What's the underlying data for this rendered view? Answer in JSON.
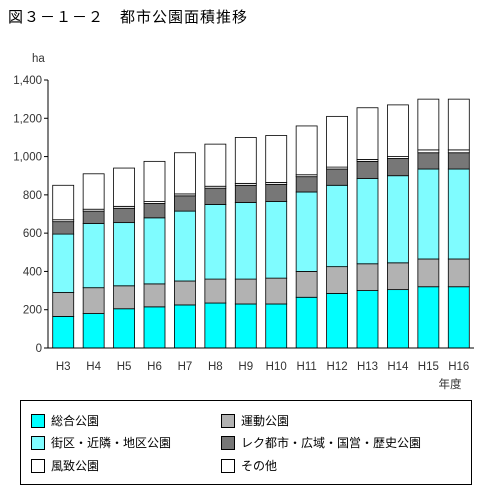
{
  "title": "図３－１－２　都市公園面積推移",
  "chart_data": {
    "type": "bar",
    "stacked": true,
    "ylabel": "ha",
    "xlabel": "年度",
    "ylim": [
      0,
      1400
    ],
    "yticks": [
      0,
      200,
      400,
      600,
      800,
      1000,
      1200,
      1400
    ],
    "ytick_labels": [
      "0",
      "200",
      "400",
      "600",
      "800",
      "1,000",
      "1,200",
      "1,400"
    ],
    "categories": [
      "H3",
      "H4",
      "H5",
      "H6",
      "H7",
      "H8",
      "H9",
      "H10",
      "H11",
      "H12",
      "H13",
      "H14",
      "H15",
      "H16"
    ],
    "series": [
      {
        "name": "総合公園",
        "color": "#00ffff",
        "values": [
          165,
          180,
          205,
          215,
          225,
          235,
          230,
          230,
          265,
          285,
          300,
          305,
          320,
          320
        ]
      },
      {
        "name": "運動公園",
        "color": "#b2b2b2",
        "values": [
          125,
          135,
          120,
          120,
          125,
          125,
          130,
          135,
          135,
          140,
          140,
          140,
          145,
          145
        ]
      },
      {
        "name": "街区・近隣・地区公園",
        "color": "#7ffcff",
        "values": [
          305,
          335,
          330,
          345,
          365,
          390,
          400,
          400,
          415,
          425,
          445,
          455,
          470,
          470
        ]
      },
      {
        "name": "レク都市・広域・国営・歴史公園",
        "color": "#777777",
        "values": [
          65,
          65,
          75,
          75,
          80,
          85,
          90,
          90,
          80,
          85,
          90,
          90,
          85,
          85
        ]
      },
      {
        "name": "風致公園",
        "color": "#ffffff",
        "values": [
          10,
          10,
          10,
          10,
          10,
          10,
          10,
          10,
          10,
          10,
          10,
          10,
          15,
          15
        ]
      },
      {
        "name": "その他",
        "color": "#ffffff",
        "values": [
          180,
          185,
          200,
          210,
          215,
          220,
          240,
          245,
          255,
          265,
          270,
          270,
          265,
          265
        ]
      }
    ],
    "grid": false,
    "legend_position": "bottom"
  },
  "legend": {
    "items": [
      {
        "label": "総合公園",
        "color": "#00ffff"
      },
      {
        "label": "運動公園",
        "color": "#b2b2b2"
      },
      {
        "label": "街区・近隣・地区公園",
        "color": "#7ffcff"
      },
      {
        "label": "レク都市・広域・国営・歴史公園",
        "color": "#777777"
      },
      {
        "label": "風致公園",
        "color": "#ffffff"
      },
      {
        "label": "その他",
        "color": "#ffffff"
      }
    ]
  }
}
